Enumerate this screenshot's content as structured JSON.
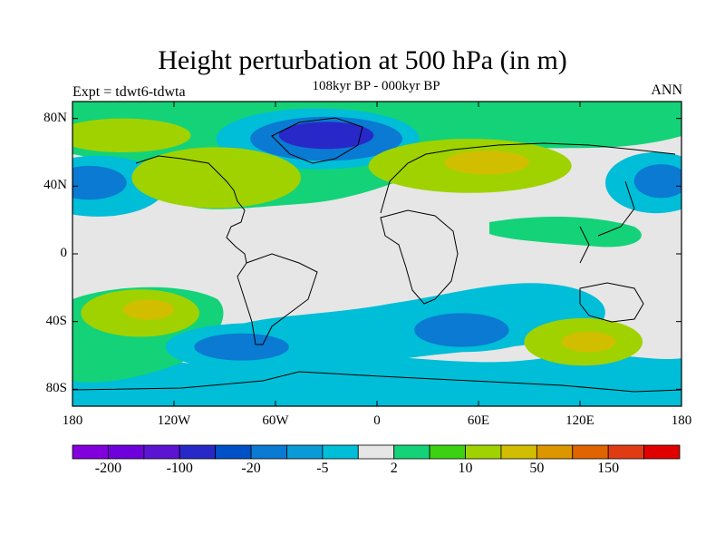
{
  "header": {
    "title": "Height perturbation at 500 hPa (in m)",
    "subtitle": "108kyr BP - 000kyr BP",
    "experiment": "Expt = tdwt6-tdwta",
    "season": "ANN"
  },
  "map": {
    "projection": "cylindrical equidistant",
    "lon_range": [
      -180,
      180
    ],
    "lat_range": [
      -90,
      90
    ],
    "lat_ticks": [
      {
        "value": 80,
        "label": "80N"
      },
      {
        "value": 40,
        "label": "40N"
      },
      {
        "value": 0,
        "label": "0"
      },
      {
        "value": -40,
        "label": "40S"
      },
      {
        "value": -80,
        "label": "80S"
      }
    ],
    "lon_ticks": [
      {
        "value": -180,
        "label": "180"
      },
      {
        "value": -120,
        "label": "120W"
      },
      {
        "value": -60,
        "label": "60W"
      },
      {
        "value": 0,
        "label": "0"
      },
      {
        "value": 60,
        "label": "60E"
      },
      {
        "value": 120,
        "label": "120E"
      },
      {
        "value": 180,
        "label": "180"
      }
    ],
    "colorbar": {
      "colors": [
        "#8200DC",
        "#6E00DC",
        "#5A14D2",
        "#2828C8",
        "#0050C8",
        "#0A7AD2",
        "#0A9AD7",
        "#00BED7",
        "#E6E6E6",
        "#14D278",
        "#3CD214",
        "#A0D200",
        "#D2BE00",
        "#DC9600",
        "#E06400",
        "#E03C14",
        "#E00000"
      ],
      "tick_labels": [
        {
          "edge": 1,
          "label": "-200"
        },
        {
          "edge": 3,
          "label": "-100"
        },
        {
          "edge": 5,
          "label": "-20"
        },
        {
          "edge": 7,
          "label": "-5"
        },
        {
          "edge": 9,
          "label": "2"
        },
        {
          "edge": 11,
          "label": "10"
        },
        {
          "edge": 13,
          "label": "50"
        },
        {
          "edge": 15,
          "label": "150"
        }
      ]
    },
    "anomaly_regions": [
      {
        "name": "greenland-low-ring",
        "lon": -35,
        "lat": 68,
        "rx": 60,
        "ry": 18,
        "level": "-5"
      },
      {
        "name": "greenland-low-mid",
        "lon": -30,
        "lat": 68,
        "rx": 45,
        "ry": 13,
        "level": "-20"
      },
      {
        "name": "greenland-low-core",
        "lon": -30,
        "lat": 70,
        "rx": 28,
        "ry": 8,
        "level": "-100"
      },
      {
        "name": "pacific-low-ring",
        "lon": -165,
        "lat": 40,
        "rx": 40,
        "ry": 18,
        "level": "-5"
      },
      {
        "name": "pacific-low-core",
        "lon": -170,
        "lat": 42,
        "rx": 22,
        "ry": 10,
        "level": "-20"
      },
      {
        "name": "west-pacific-low-ring",
        "lon": 165,
        "lat": 42,
        "rx": 30,
        "ry": 18,
        "level": "-5"
      },
      {
        "name": "west-pacific-low-core",
        "lon": 168,
        "lat": 43,
        "rx": 16,
        "ry": 10,
        "level": "-20"
      },
      {
        "name": "south-atlantic-indian-low",
        "lon": 50,
        "lat": -42,
        "rx": 50,
        "ry": 16,
        "level": "-5"
      },
      {
        "name": "south-atlantic-indian-core",
        "lon": 50,
        "lat": -45,
        "rx": 28,
        "ry": 10,
        "level": "-20"
      },
      {
        "name": "south-pacific-low",
        "lon": -75,
        "lat": -55,
        "rx": 50,
        "ry": 14,
        "level": "-5"
      },
      {
        "name": "south-pacific-low-core",
        "lon": -80,
        "lat": -55,
        "rx": 28,
        "ry": 8,
        "level": "-20"
      }
    ],
    "positive_regions": [
      {
        "name": "eurasia-high-ring",
        "lon": 55,
        "lat": 52,
        "rx": 60,
        "ry": 16,
        "level": "10"
      },
      {
        "name": "eurasia-high-core",
        "lon": 65,
        "lat": 54,
        "rx": 25,
        "ry": 7,
        "level": "50"
      },
      {
        "name": "north-america-high",
        "lon": -95,
        "lat": 45,
        "rx": 50,
        "ry": 18,
        "level": "10"
      },
      {
        "name": "north-pacific-high",
        "lon": -150,
        "lat": 70,
        "rx": 40,
        "ry": 10,
        "level": "10"
      },
      {
        "name": "south-pacific-high-ring",
        "lon": -140,
        "lat": -35,
        "rx": 35,
        "ry": 14,
        "level": "10"
      },
      {
        "name": "south-pacific-high-core",
        "lon": -135,
        "lat": -33,
        "rx": 15,
        "ry": 6,
        "level": "50"
      },
      {
        "name": "southern-indian-high-ring",
        "lon": 122,
        "lat": -52,
        "rx": 35,
        "ry": 14,
        "level": "10"
      },
      {
        "name": "southern-indian-high-core",
        "lon": 125,
        "lat": -52,
        "rx": 16,
        "ry": 6,
        "level": "50"
      }
    ]
  }
}
